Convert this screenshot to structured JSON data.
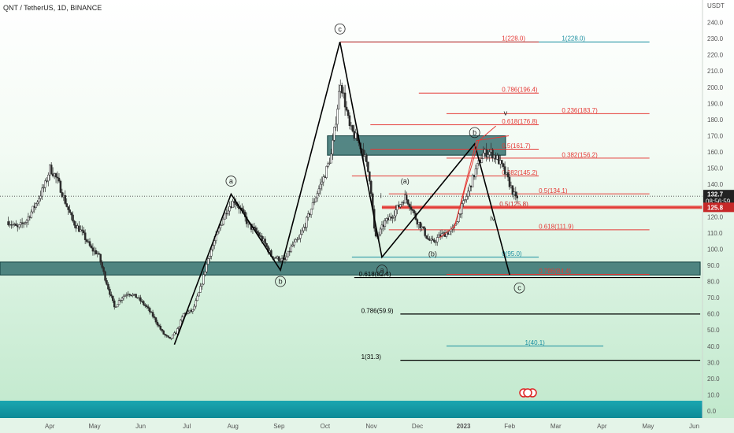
{
  "header": {
    "title": "QNT / TetherUS, 1D, BINANCE",
    "currency": "USDT"
  },
  "colors": {
    "candle": "#2a2a2a",
    "wave_line": "#000000",
    "zone_fill": "#1f5f5f",
    "fib_red": "#e53935",
    "fib_teal": "#1a8fa0",
    "fib_black": "#000000",
    "price_tag": "#222222",
    "level_tag": "#c62828"
  },
  "price_tag": {
    "value": "132.7",
    "time": "08:56:59"
  },
  "level_tag": {
    "value": "125.8"
  },
  "chart_data": {
    "type": "candlestick",
    "ylim": [
      0,
      250
    ],
    "y_ticks": [
      "240.0",
      "230.0",
      "220.0",
      "210.0",
      "200.0",
      "190.0",
      "180.0",
      "170.0",
      "160.0",
      "150.0",
      "140.0",
      "130.0",
      "120.0",
      "110.0",
      "100.0",
      "90.0",
      "80.0",
      "70.0",
      "60.0",
      "50.0",
      "40.0",
      "30.0",
      "20.0",
      "10.0",
      "0.0"
    ],
    "x_ticks": [
      {
        "label": "Apr",
        "t": 4.8
      },
      {
        "label": "May",
        "t": 5.77
      },
      {
        "label": "Jun",
        "t": 6.77
      },
      {
        "label": "Jul",
        "t": 7.77
      },
      {
        "label": "Aug",
        "t": 8.77
      },
      {
        "label": "Sep",
        "t": 9.77
      },
      {
        "label": "Oct",
        "t": 10.77
      },
      {
        "label": "Nov",
        "t": 11.77
      },
      {
        "label": "Dec",
        "t": 12.77
      },
      {
        "label": "2023",
        "t": 13.77
      },
      {
        "label": "Feb",
        "t": 14.77
      },
      {
        "label": "Mar",
        "t": 15.77
      },
      {
        "label": "Apr",
        "t": 16.77
      },
      {
        "label": "May",
        "t": 17.77
      },
      {
        "label": "Jun",
        "t": 18.77
      }
    ],
    "price_path": [
      [
        3.9,
        117
      ],
      [
        4.1,
        113
      ],
      [
        4.3,
        118
      ],
      [
        4.5,
        128
      ],
      [
        4.7,
        140
      ],
      [
        4.8,
        150
      ],
      [
        4.9,
        146
      ],
      [
        5.0,
        140
      ],
      [
        5.15,
        128
      ],
      [
        5.3,
        117
      ],
      [
        5.5,
        110
      ],
      [
        5.7,
        100
      ],
      [
        5.85,
        97
      ],
      [
        6.0,
        82
      ],
      [
        6.2,
        64
      ],
      [
        6.35,
        70
      ],
      [
        6.5,
        73
      ],
      [
        6.7,
        70
      ],
      [
        6.9,
        64
      ],
      [
        7.05,
        58
      ],
      [
        7.25,
        48
      ],
      [
        7.4,
        44
      ],
      [
        7.55,
        49
      ],
      [
        7.7,
        60
      ],
      [
        7.9,
        62
      ],
      [
        8.05,
        74
      ],
      [
        8.25,
        96
      ],
      [
        8.45,
        111
      ],
      [
        8.65,
        125
      ],
      [
        8.8,
        130
      ],
      [
        8.95,
        124
      ],
      [
        9.1,
        115
      ],
      [
        9.3,
        110
      ],
      [
        9.45,
        104
      ],
      [
        9.6,
        96
      ],
      [
        9.75,
        94
      ],
      [
        9.9,
        93
      ],
      [
        10.05,
        102
      ],
      [
        10.2,
        106
      ],
      [
        10.4,
        120
      ],
      [
        10.6,
        135
      ],
      [
        10.75,
        145
      ],
      [
        10.9,
        158
      ],
      [
        11.0,
        180
      ],
      [
        11.1,
        204
      ],
      [
        11.2,
        190
      ],
      [
        11.3,
        175
      ],
      [
        11.45,
        168
      ],
      [
        11.6,
        160
      ],
      [
        11.75,
        142
      ],
      [
        11.85,
        106
      ],
      [
        11.95,
        110
      ],
      [
        12.05,
        116
      ],
      [
        12.2,
        120
      ],
      [
        12.35,
        126
      ],
      [
        12.5,
        132
      ],
      [
        12.6,
        128
      ],
      [
        12.75,
        118
      ],
      [
        12.85,
        114
      ],
      [
        13.0,
        106
      ],
      [
        13.1,
        104
      ],
      [
        13.25,
        108
      ],
      [
        13.4,
        110
      ],
      [
        13.55,
        112
      ],
      [
        13.7,
        124
      ],
      [
        13.8,
        130
      ],
      [
        13.95,
        142
      ],
      [
        14.05,
        150
      ],
      [
        14.2,
        159
      ],
      [
        14.35,
        160
      ],
      [
        14.5,
        156
      ],
      [
        14.6,
        151
      ],
      [
        14.7,
        145
      ],
      [
        14.8,
        138
      ],
      [
        14.9,
        131
      ],
      [
        14.95,
        133
      ]
    ],
    "zones": [
      {
        "t0": 3.72,
        "t1": 18.9,
        "y0": 84,
        "y1": 92
      },
      {
        "t0": 10.82,
        "t1": 14.68,
        "y0": 158,
        "y1": 170
      }
    ],
    "waves": [
      {
        "name": "primary",
        "points": [
          [
            7.5,
            41
          ],
          [
            8.73,
            134
          ],
          [
            9.8,
            87
          ],
          [
            11.09,
            228
          ],
          [
            12.0,
            95
          ],
          [
            14.01,
            165
          ],
          [
            14.77,
            84
          ]
        ]
      },
      {
        "name": "projection",
        "points": [
          [
            13.57,
            113
          ],
          [
            14.05,
            167
          ],
          [
            14.75,
            170
          ]
        ]
      },
      {
        "name": "projection-2",
        "points": [
          [
            13.25,
            107
          ],
          [
            13.57,
            114
          ],
          [
            14.1,
            167
          ],
          [
            14.47,
            176
          ]
        ]
      }
    ],
    "wave_labels": [
      {
        "text": "a",
        "t": 8.73,
        "y": 142,
        "circle": true
      },
      {
        "text": "b",
        "t": 9.8,
        "y": 80,
        "circle": true
      },
      {
        "text": "c",
        "t": 11.09,
        "y": 236,
        "circle": true
      },
      {
        "text": "a",
        "t": 12.0,
        "y": 87,
        "circle": true
      },
      {
        "text": "(a)",
        "t": 12.5,
        "y": 142,
        "circle": false
      },
      {
        "text": "(b)",
        "t": 13.1,
        "y": 97,
        "circle": false
      },
      {
        "text": "b",
        "t": 14.01,
        "y": 172,
        "circle": true
      },
      {
        "text": "c",
        "t": 14.98,
        "y": 76,
        "circle": true
      },
      {
        "text": "iv",
        "t": 14.4,
        "y": 119,
        "circle": false
      },
      {
        "text": "v",
        "t": 14.68,
        "y": 184,
        "circle": false
      },
      {
        "text": "i",
        "t": 11.98,
        "y": 133,
        "circle": false
      }
    ],
    "fib_levels": [
      {
        "label": "0.236(183.7)",
        "y": 183.7,
        "t0": 13.4,
        "t1": 17.8,
        "color": "#e53935",
        "text_t": 15.9
      },
      {
        "label": "0.786(196.4)",
        "y": 196.4,
        "t0": 12.8,
        "t1": 15.4,
        "color": "#e53935",
        "text_t": 14.6
      },
      {
        "label": "0.618(176.8)",
        "y": 176.8,
        "t0": 11.75,
        "t1": 15.4,
        "color": "#e53935",
        "text_t": 14.6
      },
      {
        "label": "0.5(161.7)",
        "y": 161.7,
        "t0": 11.75,
        "t1": 15.4,
        "color": "#e53935",
        "text_t": 14.6
      },
      {
        "label": "0.382(156.2)",
        "y": 156.2,
        "t0": 13.4,
        "t1": 17.8,
        "color": "#e53935",
        "text_t": 15.9
      },
      {
        "label": "0.382(145.2)",
        "y": 145.2,
        "t0": 11.35,
        "t1": 15.4,
        "color": "#e53935",
        "text_t": 14.6
      },
      {
        "label": "0.5(134.1)",
        "y": 134.1,
        "t0": 12.15,
        "t1": 17.8,
        "color": "#e53935",
        "text_t": 15.4
      },
      {
        "label": "0.618(111.9)",
        "y": 111.9,
        "t0": 12.15,
        "t1": 17.8,
        "color": "#e53935",
        "text_t": 15.4
      },
      {
        "label": "0(95.0)",
        "y": 95.0,
        "t0": 11.35,
        "t1": 15.4,
        "color": "#1a8fa0",
        "text_t": 14.6
      },
      {
        "label": "0.786(84.4)",
        "y": 84.4,
        "t0": 13.4,
        "t1": 17.8,
        "color": "#e53935",
        "text_t": 15.4
      },
      {
        "label": "0.786(59.9)",
        "y": 59.9,
        "t0": 12.4,
        "t1": 18.9,
        "color": "#000000",
        "text_t": 11.55
      },
      {
        "label": "1(40.1)",
        "y": 40.1,
        "t0": 13.4,
        "t1": 16.8,
        "color": "#1a8fa0",
        "text_t": 15.1
      },
      {
        "label": "1(31.3)",
        "y": 31.3,
        "t0": 12.4,
        "t1": 18.9,
        "color": "#000000",
        "text_t": 11.55
      }
    ],
    "plain_levels": [
      {
        "label": "0.618(82.4)",
        "y": 82.4,
        "t0": 11.4,
        "t1": 18.9,
        "color": "#000000",
        "text_t": 11.5
      },
      {
        "label": "0.5(125.8)",
        "y": 125.8,
        "t0": 12.0,
        "t1": 18.9,
        "color": "#c62828",
        "text_t": 14.55
      },
      {
        "label": "1(228.0)",
        "y": 228.0,
        "t0": 11.1,
        "t1": 17.8,
        "color": "#1a8fa0",
        "text_t": 15.9
      },
      {
        "label": "1(228.0)",
        "y": 228.0,
        "t0": 11.1,
        "t1": 15.4,
        "color": "#e53935",
        "text_t": 14.6
      }
    ],
    "price_line": {
      "y": 132.7
    }
  }
}
